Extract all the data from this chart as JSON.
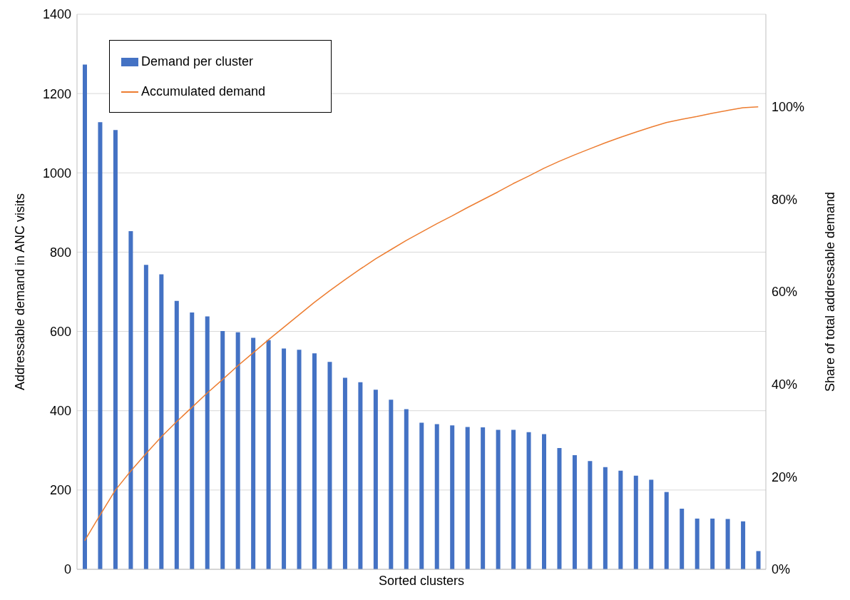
{
  "chart_data": {
    "type": "bar",
    "xlabel": "Sorted clusters",
    "ylabel": "Addressable demand in ANC visits",
    "y2label": "Share of total addressable demand",
    "categories": [
      null,
      null,
      null,
      null,
      null,
      null,
      null,
      null,
      null,
      null,
      null,
      null,
      null,
      null,
      null,
      null,
      null,
      null,
      null,
      null,
      null,
      null,
      null,
      null,
      null,
      null,
      null,
      null,
      null,
      null,
      null,
      null,
      null,
      null,
      null,
      null,
      null,
      null,
      null,
      null,
      null,
      null,
      null,
      null,
      null
    ],
    "series": [
      {
        "name": "Demand per cluster",
        "color": "#4472c4",
        "values": [
          1273,
          1128,
          1108,
          853,
          768,
          744,
          677,
          648,
          638,
          601,
          598,
          584,
          578,
          557,
          554,
          545,
          523,
          483,
          472,
          453,
          428,
          404,
          370,
          366,
          363,
          359,
          358,
          352,
          352,
          346,
          341,
          306,
          288,
          273,
          258,
          249,
          236,
          226,
          195,
          153,
          128,
          128,
          127,
          121,
          46
        ]
      },
      {
        "name": "Accumulated demand",
        "type": "line",
        "axis": "y2",
        "color": "#ed7d31",
        "values": [
          6.2,
          11.7,
          17.1,
          21.2,
          25.0,
          28.6,
          31.9,
          35.0,
          38.1,
          41.0,
          44.0,
          46.8,
          49.6,
          52.3,
          55.0,
          57.7,
          60.2,
          62.6,
          64.9,
          67.1,
          69.1,
          71.1,
          72.9,
          74.7,
          76.4,
          78.2,
          79.9,
          81.6,
          83.4,
          85.0,
          86.7,
          88.2,
          89.6,
          90.9,
          92.2,
          93.4,
          94.5,
          95.6,
          96.6,
          97.3,
          97.9,
          98.6,
          99.2,
          99.8,
          100
        ]
      }
    ],
    "ylim": [
      0,
      1400
    ],
    "yticks": [
      0,
      200,
      400,
      600,
      800,
      1000,
      1200,
      1400
    ],
    "y2lim": [
      0,
      120
    ],
    "y2ticks": [
      {
        "value": 0,
        "label": "0%"
      },
      {
        "value": 20,
        "label": "20%"
      },
      {
        "value": 40,
        "label": "40%"
      },
      {
        "value": 60,
        "label": "60%"
      },
      {
        "value": 80,
        "label": "80%"
      },
      {
        "value": 100,
        "label": "100%"
      }
    ],
    "grid": "y",
    "legend": "top left",
    "marker": "none",
    "line_style": "solid"
  }
}
